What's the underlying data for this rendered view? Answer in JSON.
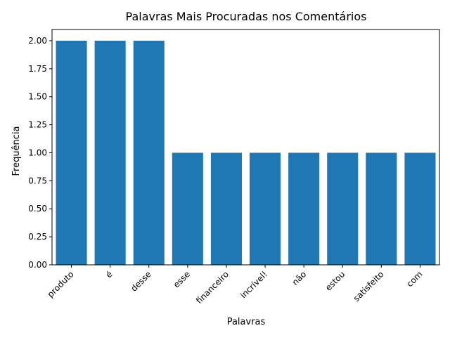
{
  "colors": {
    "bar": "#1f77b4",
    "axis": "#000000",
    "background": "#ffffff"
  },
  "chart_data": {
    "type": "bar",
    "title": "Palavras Mais Procuradas nos Comentários",
    "xlabel": "Palavras",
    "ylabel": "Frequência",
    "categories": [
      "produto",
      "é",
      "desse",
      "esse",
      "financeiro",
      "incrível!",
      "não",
      "estou",
      "satisfeito",
      "com"
    ],
    "values": [
      2,
      2,
      2,
      1,
      1,
      1,
      1,
      1,
      1,
      1
    ],
    "ylim": [
      0,
      2.1
    ],
    "yticks": [
      "0.00",
      "0.25",
      "0.50",
      "0.75",
      "1.00",
      "1.25",
      "1.50",
      "1.75",
      "2.00"
    ],
    "grid": false,
    "legend": "none"
  }
}
